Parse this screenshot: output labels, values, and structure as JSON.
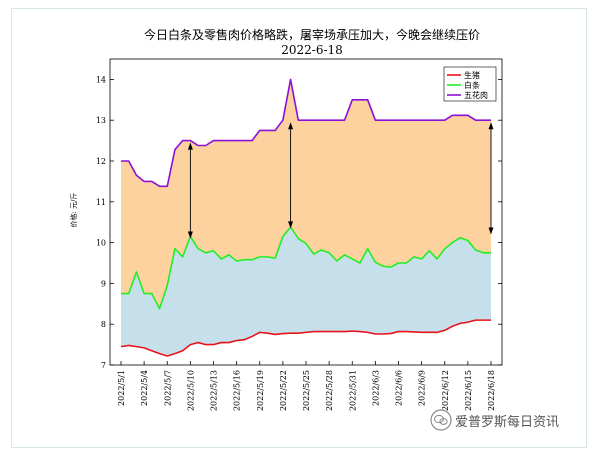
{
  "chart_data": {
    "type": "area",
    "title": "今日白条及零售肉价格略跌，屠宰场承压加大，今晚会继续压价",
    "subtitle": "2022-6-18",
    "ylabel": "价格: 元/斤",
    "xlabel": "",
    "ylim": [
      7,
      14.5
    ],
    "yticks": [
      7,
      8,
      9,
      10,
      11,
      12,
      13,
      14
    ],
    "legend_position": "top-right",
    "x": [
      "2022/5/1",
      "2022/5/2",
      "2022/5/3",
      "2022/5/4",
      "2022/5/5",
      "2022/5/6",
      "2022/5/7",
      "2022/5/8",
      "2022/5/9",
      "2022/5/10",
      "2022/5/11",
      "2022/5/12",
      "2022/5/13",
      "2022/5/14",
      "2022/5/15",
      "2022/5/16",
      "2022/5/17",
      "2022/5/18",
      "2022/5/19",
      "2022/5/20",
      "2022/5/21",
      "2022/5/22",
      "2022/5/23",
      "2022/5/24",
      "2022/5/25",
      "2022/5/26",
      "2022/5/27",
      "2022/5/28",
      "2022/5/29",
      "2022/5/30",
      "2022/5/31",
      "2022/6/1",
      "2022/6/2",
      "2022/6/3",
      "2022/6/4",
      "2022/6/5",
      "2022/6/6",
      "2022/6/7",
      "2022/6/8",
      "2022/6/9",
      "2022/6/10",
      "2022/6/11",
      "2022/6/12",
      "2022/6/13",
      "2022/6/14",
      "2022/6/15",
      "2022/6/16",
      "2022/6/17",
      "2022/6/18"
    ],
    "xtick_labels": [
      "2022/5/1",
      "2022/5/4",
      "2022/5/7",
      "2022/5/10",
      "2022/5/13",
      "2022/5/16",
      "2022/5/19",
      "2022/5/22",
      "2022/5/25",
      "2022/5/28",
      "2022/5/31",
      "2022/6/3",
      "2022/6/6",
      "2022/6/9",
      "2022/6/12",
      "2022/6/15",
      "2022/6/18"
    ],
    "series": [
      {
        "name": "生猪",
        "color": "#e8141c",
        "values": [
          7.45,
          7.48,
          7.45,
          7.42,
          7.35,
          7.28,
          7.22,
          7.28,
          7.35,
          7.5,
          7.55,
          7.5,
          7.5,
          7.55,
          7.55,
          7.6,
          7.62,
          7.7,
          7.8,
          7.78,
          7.75,
          7.77,
          7.78,
          7.78,
          7.8,
          7.82,
          7.82,
          7.82,
          7.82,
          7.82,
          7.83,
          7.82,
          7.8,
          7.76,
          7.76,
          7.77,
          7.82,
          7.82,
          7.81,
          7.8,
          7.8,
          7.8,
          7.85,
          7.95,
          8.02,
          8.05,
          8.1,
          8.1,
          8.1
        ]
      },
      {
        "name": "白条",
        "color": "#22ee22",
        "values": [
          8.75,
          8.75,
          9.28,
          8.75,
          8.75,
          8.38,
          8.95,
          9.85,
          9.65,
          10.15,
          9.85,
          9.75,
          9.8,
          9.6,
          9.7,
          9.55,
          9.58,
          9.58,
          9.65,
          9.65,
          9.62,
          10.15,
          10.38,
          10.1,
          9.98,
          9.72,
          9.82,
          9.75,
          9.55,
          9.7,
          9.6,
          9.5,
          9.85,
          9.52,
          9.42,
          9.4,
          9.5,
          9.5,
          9.65,
          9.6,
          9.8,
          9.6,
          9.85,
          10.0,
          10.12,
          10.05,
          9.82,
          9.75,
          9.75
        ]
      },
      {
        "name": "五花肉",
        "color": "#8b10d8",
        "values": [
          12.0,
          12.0,
          11.65,
          11.5,
          11.5,
          11.38,
          11.38,
          12.28,
          12.5,
          12.5,
          12.38,
          12.38,
          12.5,
          12.5,
          12.5,
          12.5,
          12.5,
          12.5,
          12.75,
          12.75,
          12.75,
          13.0,
          14.0,
          13.0,
          13.0,
          13.0,
          13.0,
          13.0,
          13.0,
          13.0,
          13.5,
          13.5,
          13.5,
          13.0,
          13.0,
          13.0,
          13.0,
          13.0,
          13.0,
          13.0,
          13.0,
          13.0,
          13.0,
          13.12,
          13.12,
          13.12,
          13.0,
          13.0,
          13.0
        ]
      }
    ],
    "fills": {
      "upper": "#fdd29e",
      "lower": "#c6e0eb"
    },
    "annotations": [
      {
        "type": "double-arrow",
        "x": "2022/5/10",
        "from": 12.45,
        "to": 10.1
      },
      {
        "type": "double-arrow",
        "x": "2022/5/23",
        "from": 12.95,
        "to": 10.35
      },
      {
        "type": "double-arrow",
        "x": "2022/6/18",
        "from": 12.95,
        "to": 10.2
      }
    ]
  },
  "watermark": {
    "text": "爱普罗斯每日资讯",
    "icon": "wechat-icon"
  }
}
